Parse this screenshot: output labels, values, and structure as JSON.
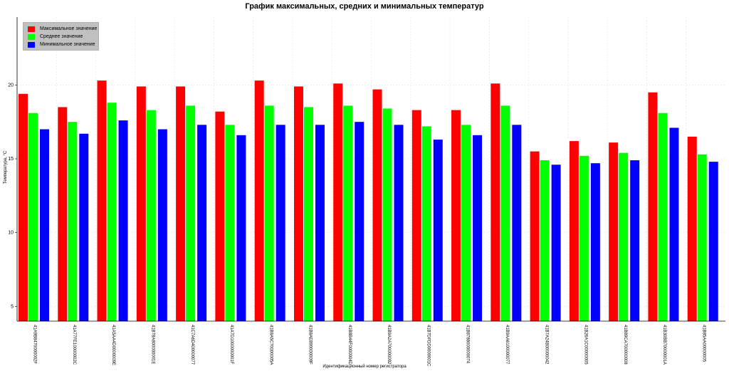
{
  "chart_data": {
    "type": "bar",
    "title": "График максимальных, средних и минимальных температур",
    "xlabel": "Идентификационный номер регистратора",
    "ylabel": "Температура, °C",
    "ylim": [
      4.0,
      24.6
    ],
    "yticks": [
      5,
      10,
      15,
      20
    ],
    "grid": true,
    "legend_position": "top-left",
    "categories": [
      "41A9B8470000002F",
      "41A77FE10000002C",
      "41A5AA4D0000009E",
      "41B78A800000001E",
      "41C7A6D400000077",
      "41A7D1000000001F",
      "41B8A5C70000005A",
      "41B8AE890000009F",
      "41B8B44F0000004D",
      "41B9A2A700000092",
      "41B7DFDD0000001C",
      "41B8788000000074",
      "41B9AA6100000077",
      "41B7A24B00000042",
      "41B26A1C00000005",
      "41B89CA700000008",
      "41B30BB70000001A",
      "41B85AA00000005"
    ],
    "series": [
      {
        "name": "Максимальное значение",
        "color": "#ff0000",
        "values": [
          19.4,
          18.5,
          20.3,
          19.9,
          19.9,
          18.2,
          20.3,
          19.9,
          20.1,
          19.7,
          18.3,
          18.3,
          20.1,
          15.5,
          16.2,
          16.1,
          19.5,
          16.5
        ]
      },
      {
        "name": "Среднее значение",
        "color": "#00ff00",
        "values": [
          18.1,
          17.5,
          18.8,
          18.3,
          18.6,
          17.3,
          18.6,
          18.5,
          18.6,
          18.4,
          17.2,
          17.3,
          18.6,
          14.9,
          15.2,
          15.4,
          18.1,
          15.3
        ]
      },
      {
        "name": "Минимальное значение",
        "color": "#0000ff",
        "values": [
          17.0,
          16.7,
          17.6,
          17.0,
          17.3,
          16.6,
          17.3,
          17.3,
          17.5,
          17.3,
          16.3,
          16.6,
          17.3,
          14.6,
          14.7,
          14.9,
          17.1,
          14.8
        ]
      }
    ]
  }
}
